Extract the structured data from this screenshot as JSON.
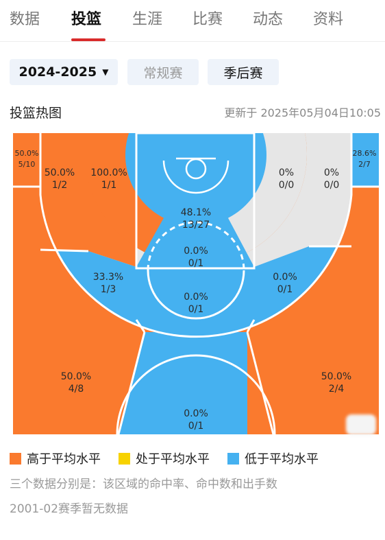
{
  "tabs": [
    {
      "label": "数据"
    },
    {
      "label": "投篮"
    },
    {
      "label": "生涯"
    },
    {
      "label": "比赛"
    },
    {
      "label": "动态"
    },
    {
      "label": "资料"
    }
  ],
  "filters": {
    "season": "2024-2025",
    "season_caret": "▼",
    "regular": "常规赛",
    "playoff": "季后赛"
  },
  "heading": "投篮热图",
  "updated": "更新于 2025年05月04日10:05",
  "colors": {
    "above": "#fa7a2e",
    "average": "#f7d200",
    "below": "#45b1f0",
    "none": "#e6e6e6"
  },
  "zones": {
    "left_corner": {
      "pct": "50.0%",
      "made": "5/10"
    },
    "right_corner": {
      "pct": "28.6%",
      "made": "2/7"
    },
    "left_long_mid": {
      "pct": "50.0%",
      "made": "1/2"
    },
    "left_short_mid": {
      "pct": "100.0%",
      "made": "1/1"
    },
    "right_short_mid": {
      "pct": "0%",
      "made": "0/0"
    },
    "right_long_mid": {
      "pct": "0%",
      "made": "0/0"
    },
    "paint": {
      "pct": "48.1%",
      "made": "13/27"
    },
    "mid_center": {
      "pct": "0.0%",
      "made": "0/1"
    },
    "left_elbow": {
      "pct": "33.3%",
      "made": "1/3"
    },
    "free_throw": {
      "pct": "0.0%",
      "made": "0/1"
    },
    "right_elbow": {
      "pct": "0.0%",
      "made": "0/1"
    },
    "left_wing_three": {
      "pct": "50.0%",
      "made": "4/8"
    },
    "right_wing_three": {
      "pct": "50.0%",
      "made": "2/4"
    },
    "top_three": {
      "pct": "0.0%",
      "made": "0/1"
    }
  },
  "legend": [
    {
      "label": "高于平均水平",
      "color": "#fa7a2e"
    },
    {
      "label": "处于平均水平",
      "color": "#f7d200"
    },
    {
      "label": "低于平均水平",
      "color": "#45b1f0"
    }
  ],
  "notes": {
    "explain": "三个数据分别是：该区域的命中率、命中数和出手数",
    "no_data": "2001-02赛季暂无数据"
  }
}
